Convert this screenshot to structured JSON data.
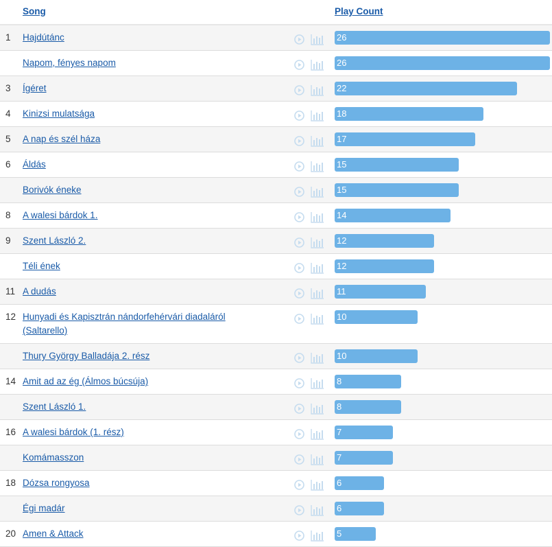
{
  "header": {
    "song_label": "Song",
    "count_label": "Play Count"
  },
  "colors": {
    "bar": "#6db2e6",
    "link": "#1a5ba8",
    "icon": "#c5dcef"
  },
  "max_count": 26,
  "rows": [
    {
      "rank": "1",
      "title": "Hajdútánc",
      "count": 26
    },
    {
      "rank": "",
      "title": "Napom, fényes napom",
      "count": 26
    },
    {
      "rank": "3",
      "title": "Ígéret",
      "count": 22
    },
    {
      "rank": "4",
      "title": "Kinizsi mulatsága",
      "count": 18
    },
    {
      "rank": "5",
      "title": "A nap és szél háza",
      "count": 17
    },
    {
      "rank": "6",
      "title": "Áldás",
      "count": 15
    },
    {
      "rank": "",
      "title": "Borivók éneke",
      "count": 15
    },
    {
      "rank": "8",
      "title": "A walesi bárdok 1.",
      "count": 14
    },
    {
      "rank": "9",
      "title": "Szent László 2.",
      "count": 12
    },
    {
      "rank": "",
      "title": "Téli ének",
      "count": 12
    },
    {
      "rank": "11",
      "title": "A dudás",
      "count": 11
    },
    {
      "rank": "12",
      "title": "Hunyadi és Kapisztrán nándorfehérvári diadaláról (Saltarello)",
      "count": 10
    },
    {
      "rank": "",
      "title": "Thury György Balladája 2. rész",
      "count": 10
    },
    {
      "rank": "14",
      "title": "Amit ad az ég (Álmos búcsúja)",
      "count": 8
    },
    {
      "rank": "",
      "title": "Szent László 1.",
      "count": 8
    },
    {
      "rank": "16",
      "title": "A walesi bárdok (1. rész)",
      "count": 7
    },
    {
      "rank": "",
      "title": "Komámasszon",
      "count": 7
    },
    {
      "rank": "18",
      "title": "Dózsa rongyosa",
      "count": 6
    },
    {
      "rank": "",
      "title": "Égi madár",
      "count": 6
    },
    {
      "rank": "20",
      "title": "Amen & Attack",
      "count": 5
    }
  ]
}
